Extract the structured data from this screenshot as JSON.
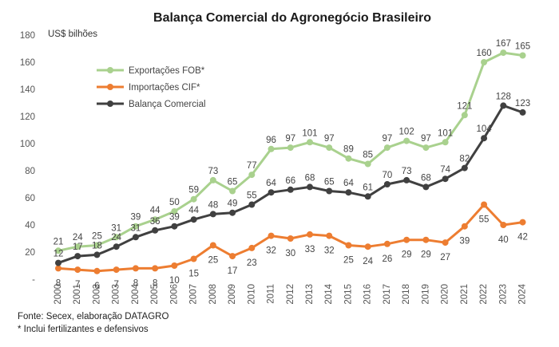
{
  "chart_data": {
    "type": "line",
    "title": "Balança Comercial do Agronegócio Brasileiro",
    "unit_label": "US$ bilhões",
    "ylim": [
      0,
      180
    ],
    "y_ticks": [
      0,
      20,
      40,
      60,
      80,
      100,
      120,
      140,
      160,
      180
    ],
    "y_tick_labels": [
      "-",
      "20",
      "40",
      "60",
      "80",
      "100",
      "120",
      "140",
      "160",
      "180"
    ],
    "grid": false,
    "legend_position": "top-left",
    "x": [
      "2000",
      "2001",
      "2002",
      "2003",
      "2004",
      "2005",
      "2006",
      "2007",
      "2008",
      "2009",
      "2010",
      "2011",
      "2012",
      "2013",
      "2014",
      "2015",
      "2016",
      "2017",
      "2018",
      "2019",
      "2020",
      "2021",
      "2022",
      "2023",
      "2024"
    ],
    "series": [
      {
        "name": "Exportações FOB*",
        "color": "#a9d18e",
        "values": [
          21,
          24,
          25,
          31,
          39,
          44,
          50,
          59,
          73,
          65,
          77,
          96,
          97,
          101,
          97,
          89,
          85,
          97,
          102,
          97,
          101,
          121,
          160,
          167,
          165
        ]
      },
      {
        "name": "Importações CIF*",
        "color": "#ed7d31",
        "values": [
          8,
          7,
          6,
          7,
          8,
          8,
          10,
          15,
          25,
          17,
          23,
          32,
          30,
          33,
          32,
          25,
          24,
          26,
          29,
          29,
          27,
          39,
          55,
          40,
          42
        ]
      },
      {
        "name": "Balança Comercial",
        "color": "#404040",
        "values": [
          12,
          17,
          18,
          24,
          31,
          36,
          39,
          44,
          48,
          49,
          55,
          64,
          66,
          68,
          65,
          64,
          61,
          70,
          73,
          68,
          74,
          82,
          104,
          128,
          123
        ]
      }
    ]
  },
  "footer": {
    "source": "Fonte: Secex, elaboração DATAGRO",
    "note": "* Inclui fertilizantes e defensivos"
  }
}
